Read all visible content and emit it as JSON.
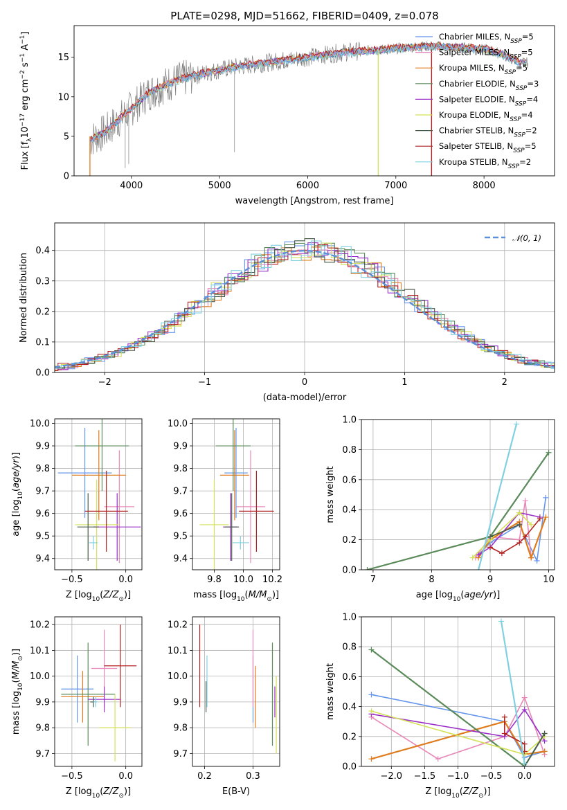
{
  "figure": {
    "title": "PLATE=0298, MJD=51662, FIBERID=0409, z=0.078"
  },
  "colors": {
    "series": [
      "#6495ed",
      "#e888b8",
      "#e07b1e",
      "#5a8a5a",
      "#9b30c8",
      "#d4e157",
      "#4a5a4a",
      "#b22222",
      "#80d0e0"
    ],
    "data": "#7f7f7f",
    "gaussian": "#5b8fd8"
  },
  "chart_data": [
    {
      "id": "spectrum",
      "type": "line",
      "xlabel": "wavelength [Angstrom, rest frame]",
      "ylabel": "Flux [f_λ10^-17 erg cm^-2 s^-1 A^-1]",
      "xlim": [
        3350,
        8800
      ],
      "ylim": [
        0,
        19
      ],
      "xticks": [
        4000,
        5000,
        6000,
        7000,
        8000
      ],
      "yticks": [
        0,
        5,
        10,
        15
      ],
      "grid": false,
      "legend_position": "top-right",
      "data_series": {
        "name": "",
        "x": [
          3530,
          3600,
          3700,
          3800,
          3900,
          4000,
          4100,
          4200,
          4300,
          4400,
          4500,
          4600,
          4800,
          5000,
          5200,
          5400,
          5600,
          5800,
          6000,
          6200,
          6400,
          6600,
          6800,
          7000,
          7200,
          7400,
          7600,
          7800,
          8000,
          8200,
          8400
        ],
        "y": [
          4.5,
          5.0,
          5.5,
          6.5,
          7.5,
          8.5,
          9.5,
          10.5,
          11.0,
          11.6,
          12.0,
          12.3,
          12.9,
          13.4,
          13.8,
          14.1,
          14.4,
          14.7,
          15.0,
          15.3,
          15.6,
          15.8,
          15.9,
          16.1,
          16.3,
          16.4,
          16.3,
          16.2,
          16.0,
          15.4,
          14.3
        ]
      },
      "series": [
        {
          "name": "Chabrier MILES, N_SSP=5",
          "label_main": "Chabrier MILES, N",
          "label_sub": "SSP",
          "label_tail": "=5"
        },
        {
          "name": "Salpeter MILES, N_SSP=5",
          "label_main": "Salpeter MILES, N",
          "label_sub": "SSP",
          "label_tail": "=5"
        },
        {
          "name": "Kroupa MILES, N_SSP=5",
          "label_main": "Kroupa MILES, N",
          "label_sub": "SSP",
          "label_tail": "=5"
        },
        {
          "name": "Chabrier ELODIE, N_SSP=3",
          "label_main": "Chabrier ELODIE, N",
          "label_sub": "SSP",
          "label_tail": "=3"
        },
        {
          "name": "Salpeter ELODIE, N_SSP=4",
          "label_main": "Salpeter ELODIE, N",
          "label_sub": "SSP",
          "label_tail": "=4"
        },
        {
          "name": "Kroupa ELODIE, N_SSP=4",
          "label_main": "Kroupa ELODIE, N",
          "label_sub": "SSP",
          "label_tail": "=4"
        },
        {
          "name": "Chabrier STELIB, N_SSP=2",
          "label_main": "Chabrier STELIB, N",
          "label_sub": "SSP",
          "label_tail": "=2"
        },
        {
          "name": "Salpeter STELIB, N_SSP=5",
          "label_main": "Salpeter STELIB, N",
          "label_sub": "SSP",
          "label_tail": "=5"
        },
        {
          "name": "Kroupa STELIB, N_SSP=2",
          "label_main": "Kroupa STELIB, N",
          "label_sub": "SSP",
          "label_tail": "=2"
        }
      ]
    },
    {
      "id": "residuals",
      "type": "line",
      "xlabel": "(data-model)/error",
      "ylabel": "Normed distribution",
      "xlim": [
        -2.5,
        2.5
      ],
      "ylim": [
        0,
        0.49
      ],
      "xticks": [
        -2,
        -1,
        0,
        1,
        2
      ],
      "yticks": [
        0.0,
        0.1,
        0.2,
        0.3,
        0.4
      ],
      "grid": true,
      "legend_position": "top-right",
      "reference_curve": {
        "name": "N(0,1)",
        "label": "𝒩(0, 1)"
      },
      "bin_width": 0.1,
      "histogram_peak": 0.46
    },
    {
      "id": "age-vs-Z",
      "type": "scatter",
      "xlabel": "Z [log10(Z/Z⊙)]",
      "ylabel": "age [log10(age/yr)]",
      "xlim": [
        -0.66,
        0.15
      ],
      "ylim": [
        9.35,
        10.02
      ],
      "xticks": [
        -0.5,
        0.0
      ],
      "yticks": [
        9.4,
        9.5,
        9.6,
        9.7,
        9.8,
        9.9,
        10.0
      ],
      "grid": true,
      "points": [
        {
          "x": -0.38,
          "y": 9.78,
          "xerr": 0.25,
          "yerr": 0.2
        },
        {
          "x": -0.06,
          "y": 9.63,
          "xerr": 0.14,
          "yerr": 0.25
        },
        {
          "x": -0.25,
          "y": 9.77,
          "xerr": 0.25,
          "yerr": 0.2
        },
        {
          "x": -0.22,
          "y": 9.9,
          "xerr": 0.25,
          "yerr": 0.2
        },
        {
          "x": -0.08,
          "y": 9.54,
          "xerr": 0.22,
          "yerr": 0.15
        },
        {
          "x": -0.27,
          "y": 9.55,
          "xerr": 0.2,
          "yerr": 0.2
        },
        {
          "x": -0.35,
          "y": 9.54,
          "xerr": 0.1,
          "yerr": 0.15
        },
        {
          "x": -0.18,
          "y": 9.61,
          "xerr": 0.2,
          "yerr": 0.18
        },
        {
          "x": -0.3,
          "y": 9.47,
          "xerr": 0.04,
          "yerr": 0.03
        }
      ]
    },
    {
      "id": "age-vs-mass",
      "type": "scatter",
      "xlabel": "mass [log10(M/M⊙)]",
      "ylabel": "",
      "xlim": [
        9.65,
        10.25
      ],
      "ylim": [
        9.35,
        10.02
      ],
      "xticks": [
        9.8,
        10.0,
        10.2
      ],
      "yticks": [
        9.4,
        9.5,
        9.6,
        9.7,
        9.8,
        9.9,
        10.0
      ],
      "grid": true,
      "points": [
        {
          "x": 9.95,
          "y": 9.78,
          "xerr": 0.08,
          "yerr": 0.2
        },
        {
          "x": 10.05,
          "y": 9.63,
          "xerr": 0.1,
          "yerr": 0.25
        },
        {
          "x": 9.94,
          "y": 9.77,
          "xerr": 0.1,
          "yerr": 0.2
        },
        {
          "x": 9.93,
          "y": 9.9,
          "xerr": 0.12,
          "yerr": 0.2
        },
        {
          "x": 9.91,
          "y": 9.54,
          "xerr": 0.05,
          "yerr": 0.15
        },
        {
          "x": 9.8,
          "y": 9.55,
          "xerr": 0.1,
          "yerr": 0.2
        },
        {
          "x": 9.92,
          "y": 9.54,
          "xerr": 0.05,
          "yerr": 0.15
        },
        {
          "x": 10.09,
          "y": 9.61,
          "xerr": 0.12,
          "yerr": 0.18
        },
        {
          "x": 9.98,
          "y": 9.47,
          "xerr": 0.06,
          "yerr": 0.03
        }
      ]
    },
    {
      "id": "massweight-vs-age",
      "type": "line",
      "xlabel": "age [log10(age/yr)]",
      "ylabel": "mass weight",
      "xlim": [
        6.8,
        10.1
      ],
      "ylim": [
        0,
        1
      ],
      "xticks": [
        7,
        8,
        9,
        10
      ],
      "yticks": [
        0.0,
        0.2,
        0.4,
        0.6,
        0.8,
        1.0
      ],
      "grid": true,
      "series": [
        {
          "x": [
            8.8,
            9.0,
            9.5,
            9.8,
            9.95
          ],
          "y": [
            0.1,
            0.18,
            0.3,
            0.06,
            0.48
          ]
        },
        {
          "x": [
            8.75,
            9.0,
            9.5,
            9.6,
            9.7
          ],
          "y": [
            0.08,
            0.22,
            0.2,
            0.46,
            0.08
          ]
        },
        {
          "x": [
            8.8,
            9.0,
            9.5,
            9.7,
            9.95
          ],
          "y": [
            0.08,
            0.2,
            0.32,
            0.08,
            0.35
          ]
        },
        {
          "x": [
            6.9,
            9.0,
            10.0
          ],
          "y": [
            0.0,
            0.22,
            0.78
          ]
        },
        {
          "x": [
            8.8,
            9.0,
            9.5,
            9.85
          ],
          "y": [
            0.1,
            0.15,
            0.38,
            0.35
          ]
        },
        {
          "x": [
            8.7,
            9.0,
            9.5,
            9.7
          ],
          "y": [
            0.08,
            0.2,
            0.38,
            0.3
          ]
        },
        {
          "x": [
            9.0,
            9.5
          ],
          "y": [
            0.22,
            0.3
          ]
        },
        {
          "x": [
            9.0,
            9.2,
            9.5,
            9.6,
            9.85
          ],
          "y": [
            0.15,
            0.11,
            0.18,
            0.22,
            0.34
          ]
        },
        {
          "x": [
            8.8,
            9.45
          ],
          "y": [
            0.0,
            0.97
          ]
        }
      ]
    },
    {
      "id": "mass-vs-Z",
      "type": "scatter",
      "xlabel": "Z [log10(Z/Z⊙)]",
      "ylabel": "mass [log10(M/M⊙)]",
      "xlim": [
        -0.66,
        0.15
      ],
      "ylim": [
        9.65,
        10.23
      ],
      "xticks": [
        -0.5,
        0.0
      ],
      "yticks": [
        9.7,
        9.8,
        9.9,
        10.0,
        10.1,
        10.2
      ],
      "grid": true,
      "points": [
        {
          "x": -0.45,
          "y": 9.95,
          "xerr": 0.15,
          "yerr": 0.13
        },
        {
          "x": -0.2,
          "y": 10.03,
          "xerr": 0.12,
          "yerr": 0.15
        },
        {
          "x": -0.4,
          "y": 9.92,
          "xerr": 0.2,
          "yerr": 0.1
        },
        {
          "x": -0.35,
          "y": 9.93,
          "xerr": 0.25,
          "yerr": 0.2
        },
        {
          "x": -0.2,
          "y": 9.91,
          "xerr": 0.15,
          "yerr": 0.05
        },
        {
          "x": -0.1,
          "y": 9.8,
          "xerr": 0.15,
          "yerr": 0.13
        },
        {
          "x": -0.3,
          "y": 9.9,
          "xerr": 0.03,
          "yerr": 0.02
        },
        {
          "x": -0.05,
          "y": 10.04,
          "xerr": 0.15,
          "yerr": 0.16
        },
        {
          "x": -0.28,
          "y": 9.9,
          "xerr": 0.02,
          "yerr": 0.02
        }
      ]
    },
    {
      "id": "mass-vs-ebv",
      "type": "scatter",
      "xlabel": "E(B-V)",
      "ylabel": "",
      "xlim": [
        0.175,
        0.355
      ],
      "ylim": [
        9.65,
        10.23
      ],
      "xticks": [
        0.2,
        0.3
      ],
      "yticks": [
        9.7,
        9.8,
        9.9,
        10.0,
        10.1,
        10.2
      ],
      "grid": true,
      "points": [
        {
          "x": 0.3,
          "y": 9.95,
          "xerr": 0.0,
          "yerr": 0.13
        },
        {
          "x": 0.3,
          "y": 10.03,
          "xerr": 0.0,
          "yerr": 0.15
        },
        {
          "x": 0.305,
          "y": 9.92,
          "xerr": 0.0,
          "yerr": 0.12
        },
        {
          "x": 0.34,
          "y": 9.93,
          "xerr": 0.0,
          "yerr": 0.2
        },
        {
          "x": 0.345,
          "y": 9.9,
          "xerr": 0.0,
          "yerr": 0.06
        },
        {
          "x": 0.348,
          "y": 9.85,
          "xerr": 0.0,
          "yerr": 0.15
        },
        {
          "x": 0.203,
          "y": 9.92,
          "xerr": 0.0,
          "yerr": 0.06
        },
        {
          "x": 0.19,
          "y": 10.04,
          "xerr": 0.0,
          "yerr": 0.16
        },
        {
          "x": 0.205,
          "y": 9.98,
          "xerr": 0.0,
          "yerr": 0.1
        }
      ]
    },
    {
      "id": "massweight-vs-Z",
      "type": "line",
      "xlabel": "Z [log10(Z/Z⊙)]",
      "ylabel": "mass weight",
      "xlim": [
        -2.45,
        0.45
      ],
      "ylim": [
        0,
        1
      ],
      "xticks": [
        -2.0,
        -1.5,
        -1.0,
        -0.5,
        0.0
      ],
      "yticks": [
        0.0,
        0.2,
        0.4,
        0.6,
        0.8,
        1.0
      ],
      "grid": true,
      "series": [
        {
          "x": [
            -2.3,
            -0.3,
            0.0,
            0.3
          ],
          "y": [
            0.48,
            0.3,
            0.06,
            0.1
          ]
        },
        {
          "x": [
            -2.3,
            -1.3,
            -0.3,
            0.0,
            0.3
          ],
          "y": [
            0.33,
            0.05,
            0.2,
            0.46,
            0.08
          ]
        },
        {
          "x": [
            -2.3,
            -0.3,
            0.0,
            0.3
          ],
          "y": [
            0.05,
            0.3,
            0.08,
            0.1
          ]
        },
        {
          "x": [
            -2.3,
            0.0,
            0.3
          ],
          "y": [
            0.78,
            0.0,
            0.22
          ]
        },
        {
          "x": [
            -2.3,
            -0.3,
            0.0,
            0.3
          ],
          "y": [
            0.35,
            0.2,
            0.38,
            0.17
          ]
        },
        {
          "x": [
            -2.3,
            0.0,
            0.3
          ],
          "y": [
            0.37,
            0.08,
            0.2
          ]
        },
        {
          "x": [
            0.0,
            0.3
          ],
          "y": [
            0.0,
            0.22
          ]
        },
        {
          "x": [
            -0.3,
            -0.3,
            0.0,
            0.0
          ],
          "y": [
            0.33,
            0.22,
            0.15,
            0.1
          ]
        },
        {
          "x": [
            -0.35,
            0.0
          ],
          "y": [
            0.97,
            0.02
          ]
        }
      ]
    }
  ]
}
